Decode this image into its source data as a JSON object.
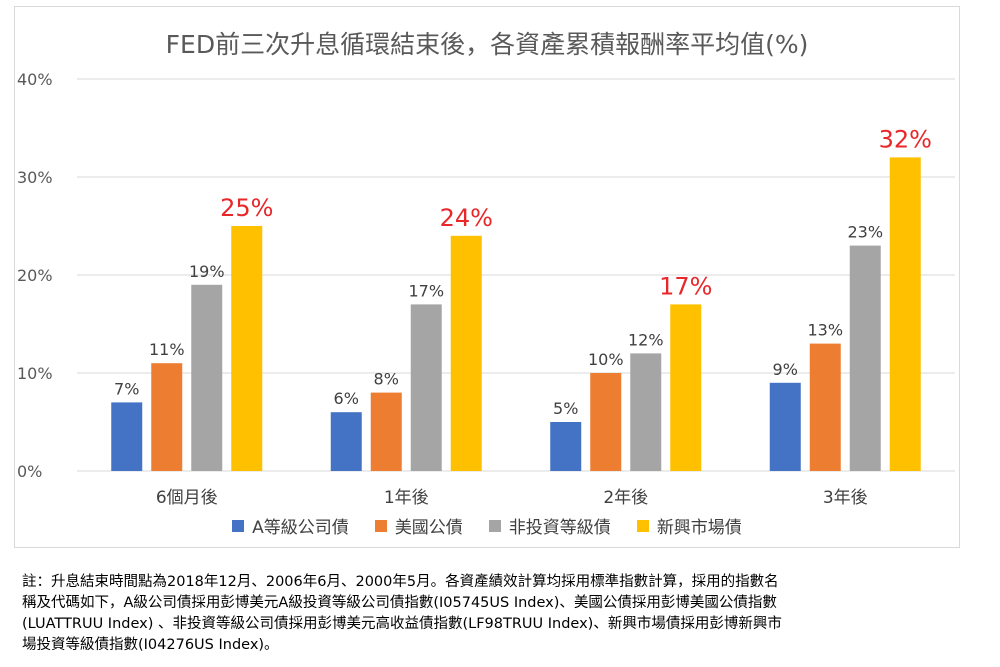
{
  "chart_data": {
    "type": "bar",
    "title": "FED前三次升息循環結束後，各資產累積報酬率平均值(%)",
    "categories": [
      "6個月後",
      "1年後",
      "2年後",
      "3年後"
    ],
    "series": [
      {
        "name": "A等級公司債",
        "color": "#4472c4",
        "values": [
          7,
          6,
          5,
          9
        ]
      },
      {
        "name": "美國公債",
        "color": "#ed7d31",
        "values": [
          11,
          8,
          10,
          13
        ]
      },
      {
        "name": "非投資等級債",
        "color": "#a5a5a5",
        "values": [
          19,
          17,
          12,
          23
        ]
      },
      {
        "name": "新興市場債",
        "color": "#ffc000",
        "values": [
          25,
          24,
          17,
          32
        ]
      }
    ],
    "ylim": [
      0,
      40
    ],
    "yticks": [
      "0%",
      "10%",
      "20%",
      "30%",
      "40%"
    ],
    "grid": true,
    "legend": "bottom",
    "highlight_label_color": "#e8272a"
  },
  "footnote": [
    "註：升息結束時間點為2018年12月、2006年6月、2000年5月。各資產績效計算均採用標準指數計算，採用的指數名",
    "稱及代碼如下，A級公司債採用彭博美元A級投資等級公司債指數(I05745US  Index)、美國公債採用彭博美國公債指數",
    "(LUATTRUU Index) 、非投資等級公司債採用彭博美元高收益債指數(LF98TRUU Index)、新興市場債採用彭博新興市",
    "場投資等級債指數(I04276US Index)。"
  ]
}
